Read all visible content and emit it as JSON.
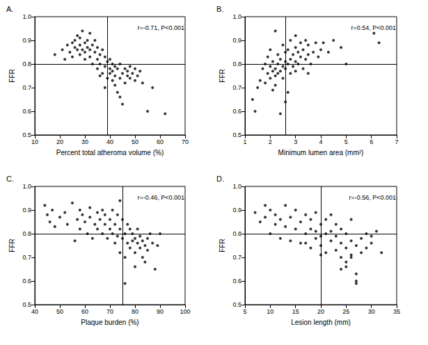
{
  "chart_data": [
    {
      "type": "scatter",
      "title": "A.",
      "annotation": "r=-0.71, P<0.001",
      "x_label": "Percent total atheroma volume (%)",
      "y_label": "FFR",
      "color": "#000000",
      "marker": "circle",
      "grid": false,
      "reference_lines": {
        "x": 39,
        "y": 0.8
      },
      "xlim": [
        10,
        70
      ],
      "xticks": [
        10,
        20,
        30,
        40,
        50,
        60,
        70
      ],
      "ylim": [
        0.5,
        1.0
      ],
      "yticks": [
        0.5,
        0.6,
        0.7,
        0.8,
        0.9,
        {
          "value": 1,
          "label": "1.0"
        }
      ],
      "x": [
        18,
        21,
        22,
        23,
        24,
        25,
        25,
        26,
        26,
        27,
        27,
        28,
        28,
        28,
        29,
        29,
        30,
        30,
        30,
        31,
        31,
        32,
        32,
        32,
        33,
        33,
        34,
        34,
        35,
        35,
        35,
        36,
        36,
        37,
        37,
        38,
        38,
        39,
        39,
        40,
        40,
        40,
        41,
        41,
        41,
        42,
        42,
        42,
        43,
        43,
        44,
        44,
        45,
        45,
        46,
        46,
        47,
        47,
        48,
        48,
        49,
        50,
        50,
        51,
        52,
        53,
        55,
        57,
        62,
        38,
        36,
        44
      ],
      "values": [
        0.84,
        0.86,
        0.82,
        0.88,
        0.85,
        0.89,
        0.83,
        0.9,
        0.87,
        0.86,
        0.92,
        0.88,
        0.84,
        0.91,
        0.94,
        0.86,
        0.89,
        0.85,
        0.82,
        0.9,
        0.87,
        0.86,
        0.83,
        0.93,
        0.88,
        0.8,
        0.85,
        0.9,
        0.87,
        0.82,
        0.78,
        0.84,
        0.8,
        0.86,
        0.76,
        0.83,
        0.79,
        0.81,
        0.74,
        0.82,
        0.78,
        0.76,
        0.8,
        0.77,
        0.73,
        0.79,
        0.75,
        0.71,
        0.78,
        0.68,
        0.8,
        0.74,
        0.76,
        0.63,
        0.78,
        0.72,
        0.77,
        0.75,
        0.79,
        0.74,
        0.76,
        0.73,
        0.78,
        0.75,
        0.77,
        0.72,
        0.6,
        0.7,
        0.59,
        0.7,
        0.75,
        0.66
      ]
    },
    {
      "type": "scatter",
      "title": "B.",
      "annotation": "r=0.54, P<0.001",
      "x_label": "Minimum lumen area (mm²)",
      "y_label": "FFR",
      "color": "#000000",
      "marker": "circle",
      "grid": false,
      "reference_lines": {
        "x": 2.6,
        "y": 0.8
      },
      "xlim": [
        1,
        7
      ],
      "xticks": [
        1,
        2,
        3,
        4,
        5,
        6,
        7
      ],
      "ylim": [
        0.5,
        1.0
      ],
      "yticks": [
        0.5,
        0.6,
        0.7,
        0.8,
        0.9,
        {
          "value": 1,
          "label": "1.0"
        }
      ],
      "x": [
        1.3,
        1.4,
        1.5,
        1.6,
        1.7,
        1.8,
        1.8,
        1.9,
        1.9,
        2.0,
        2.0,
        2.0,
        2.1,
        2.1,
        2.1,
        2.2,
        2.2,
        2.2,
        2.3,
        2.3,
        2.3,
        2.4,
        2.4,
        2.4,
        2.5,
        2.5,
        2.5,
        2.6,
        2.6,
        2.6,
        2.7,
        2.7,
        2.7,
        2.8,
        2.8,
        2.8,
        2.9,
        2.9,
        3.0,
        3.0,
        3.0,
        3.0,
        3.1,
        3.1,
        3.2,
        3.2,
        3.3,
        3.3,
        3.4,
        3.4,
        3.5,
        3.5,
        3.6,
        3.7,
        3.8,
        3.9,
        4.0,
        4.1,
        4.3,
        4.5,
        4.8,
        5.0,
        6.1,
        6.3,
        2.2,
        2.6,
        3.5
      ],
      "values": [
        0.65,
        0.6,
        0.7,
        0.73,
        0.78,
        0.72,
        0.8,
        0.76,
        0.83,
        0.74,
        0.79,
        0.86,
        0.77,
        0.81,
        0.69,
        0.75,
        0.78,
        0.94,
        0.76,
        0.8,
        0.84,
        0.59,
        0.77,
        0.82,
        0.74,
        0.79,
        0.88,
        0.78,
        0.81,
        0.85,
        0.68,
        0.8,
        0.86,
        0.76,
        0.82,
        0.9,
        0.79,
        0.84,
        0.77,
        0.81,
        0.87,
        0.92,
        0.8,
        0.85,
        0.83,
        0.89,
        0.78,
        0.86,
        0.82,
        0.9,
        0.84,
        0.88,
        0.8,
        0.85,
        0.89,
        0.83,
        0.86,
        0.89,
        0.85,
        0.9,
        0.87,
        0.8,
        0.93,
        0.89,
        0.71,
        0.64,
        0.76
      ]
    },
    {
      "type": "scatter",
      "title": "C.",
      "annotation": "r=-0.46, P<0.001",
      "x_label": "Plaque burden (%)",
      "y_label": "FFR",
      "color": "#000000",
      "marker": "circle",
      "grid": false,
      "reference_lines": {
        "x": 75,
        "y": 0.8
      },
      "xlim": [
        40,
        100
      ],
      "xticks": [
        40,
        50,
        60,
        70,
        80,
        90,
        100
      ],
      "ylim": [
        0.5,
        1.0
      ],
      "yticks": [
        0.5,
        0.6,
        0.7,
        0.8,
        0.9,
        {
          "value": 1,
          "label": "1.0"
        }
      ],
      "x": [
        44,
        45,
        46,
        47,
        48,
        50,
        52,
        53,
        55,
        56,
        57,
        58,
        58,
        59,
        60,
        61,
        62,
        62,
        63,
        64,
        65,
        65,
        66,
        67,
        67,
        68,
        68,
        69,
        70,
        70,
        71,
        71,
        72,
        72,
        73,
        73,
        74,
        74,
        75,
        75,
        76,
        76,
        77,
        77,
        78,
        78,
        79,
        79,
        80,
        80,
        81,
        81,
        82,
        82,
        83,
        83,
        84,
        85,
        85,
        86,
        87,
        88,
        89,
        90,
        76,
        80,
        84,
        74
      ],
      "values": [
        0.92,
        0.88,
        0.85,
        0.9,
        0.83,
        0.87,
        0.89,
        0.84,
        0.93,
        0.77,
        0.86,
        0.9,
        0.82,
        0.88,
        0.85,
        0.8,
        0.91,
        0.87,
        0.78,
        0.84,
        0.89,
        0.82,
        0.86,
        0.8,
        0.9,
        0.84,
        0.88,
        0.78,
        0.82,
        0.86,
        0.8,
        0.9,
        0.76,
        0.84,
        0.79,
        0.88,
        0.82,
        0.94,
        0.78,
        0.86,
        0.8,
        0.7,
        0.84,
        0.76,
        0.82,
        0.74,
        0.8,
        0.77,
        0.78,
        0.72,
        0.76,
        0.82,
        0.74,
        0.79,
        0.77,
        0.7,
        0.75,
        0.78,
        0.73,
        0.8,
        0.76,
        0.65,
        0.75,
        0.8,
        0.59,
        0.66,
        0.68,
        0.72
      ]
    },
    {
      "type": "scatter",
      "title": "D.",
      "annotation": "r=-0.56, P<0.001",
      "x_label": "Lesion length (mm)",
      "y_label": "FFR",
      "color": "#000000",
      "marker": "circle",
      "grid": false,
      "reference_lines": {
        "x": 20,
        "y": 0.8
      },
      "xlim": [
        5,
        35
      ],
      "xticks": [
        5,
        10,
        15,
        20,
        25,
        30,
        35
      ],
      "ylim": [
        0.5,
        1.0
      ],
      "yticks": [
        0.5,
        0.6,
        0.7,
        0.8,
        0.9,
        {
          "value": 1,
          "label": "1.0"
        }
      ],
      "x": [
        7,
        8,
        9,
        9,
        10,
        10,
        11,
        11,
        12,
        12,
        13,
        13,
        14,
        14,
        15,
        15,
        16,
        16,
        17,
        17,
        18,
        18,
        18,
        19,
        19,
        19,
        20,
        20,
        20,
        21,
        21,
        21,
        22,
        22,
        22,
        23,
        23,
        23,
        24,
        24,
        24,
        25,
        25,
        25,
        26,
        26,
        26,
        27,
        27,
        27,
        28,
        28,
        29,
        29,
        30,
        30,
        31,
        32,
        24,
        25,
        26,
        27,
        20,
        17
      ],
      "values": [
        0.89,
        0.85,
        0.92,
        0.87,
        0.8,
        0.9,
        0.84,
        0.88,
        0.78,
        0.86,
        0.92,
        0.83,
        0.77,
        0.87,
        0.82,
        0.9,
        0.76,
        0.85,
        0.8,
        0.88,
        0.74,
        0.82,
        0.86,
        0.78,
        0.81,
        0.89,
        0.75,
        0.79,
        0.84,
        0.72,
        0.8,
        0.86,
        0.77,
        0.81,
        0.88,
        0.73,
        0.79,
        0.84,
        0.7,
        0.76,
        0.82,
        0.66,
        0.74,
        0.8,
        0.71,
        0.77,
        0.86,
        0.63,
        0.6,
        0.75,
        0.78,
        0.72,
        0.8,
        0.74,
        0.79,
        0.76,
        0.81,
        0.72,
        0.65,
        0.68,
        0.7,
        0.59,
        0.71,
        0.76
      ]
    }
  ]
}
